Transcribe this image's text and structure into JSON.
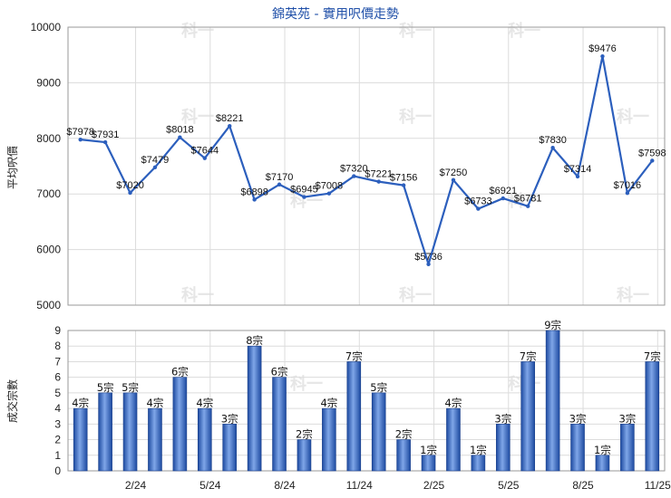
{
  "chart_data": [
    {
      "type": "line",
      "title": "錦英苑 - 實用呎價走勢",
      "ylabel": "平均呎價",
      "ylim": [
        5000,
        10000
      ],
      "yticks": [
        5000,
        6000,
        7000,
        8000,
        9000,
        10000
      ],
      "x_ticks": [
        "2/24",
        "5/24",
        "8/24",
        "11/24",
        "2/25",
        "5/25",
        "8/25",
        "11/25"
      ],
      "grid": true,
      "color": "#2c5fbd",
      "series": [
        {
          "values": [
            7978,
            7931,
            7020,
            7479,
            8018,
            7644,
            8221,
            6898,
            7170,
            6945,
            7008,
            7320,
            7221,
            7156,
            5736,
            7250,
            6733,
            6921,
            6781,
            7830,
            7314,
            9476,
            7016,
            7598
          ],
          "labels": [
            "$7978",
            "$7931",
            "$7020",
            "$7479",
            "$8018",
            "$7644",
            "$8221",
            "$6898",
            "$7170",
            "$6945",
            "$7008",
            "$7320",
            "$7221",
            "$7156",
            "$5736",
            "$7250",
            "$6733",
            "$6921",
            "$6781",
            "$7830",
            "$7314",
            "$9476",
            "$7016",
            "$7598"
          ]
        }
      ]
    },
    {
      "type": "bar",
      "ylabel": "成交宗數",
      "ylim": [
        0,
        9
      ],
      "yticks": [
        0,
        1,
        2,
        3,
        4,
        5,
        6,
        7,
        8,
        9
      ],
      "x_ticks": [
        "2/24",
        "5/24",
        "8/24",
        "11/24",
        "2/25",
        "5/25",
        "8/25",
        "11/25"
      ],
      "grid": true,
      "color": "#2c5fbd",
      "series": [
        {
          "values": [
            4,
            5,
            5,
            4,
            6,
            4,
            3,
            8,
            6,
            2,
            4,
            7,
            5,
            2,
            1,
            4,
            1,
            3,
            7,
            9,
            3,
            1,
            3,
            7
          ],
          "labels": [
            "4宗",
            "5宗",
            "5宗",
            "4宗",
            "6宗",
            "4宗",
            "3宗",
            "8宗",
            "6宗",
            "2宗",
            "4宗",
            "7宗",
            "5宗",
            "2宗",
            "1宗",
            "4宗",
            "1宗",
            "3宗",
            "7宗",
            "9宗",
            "3宗",
            "1宗",
            "3宗",
            "7宗"
          ]
        }
      ]
    }
  ],
  "watermark": "科一"
}
